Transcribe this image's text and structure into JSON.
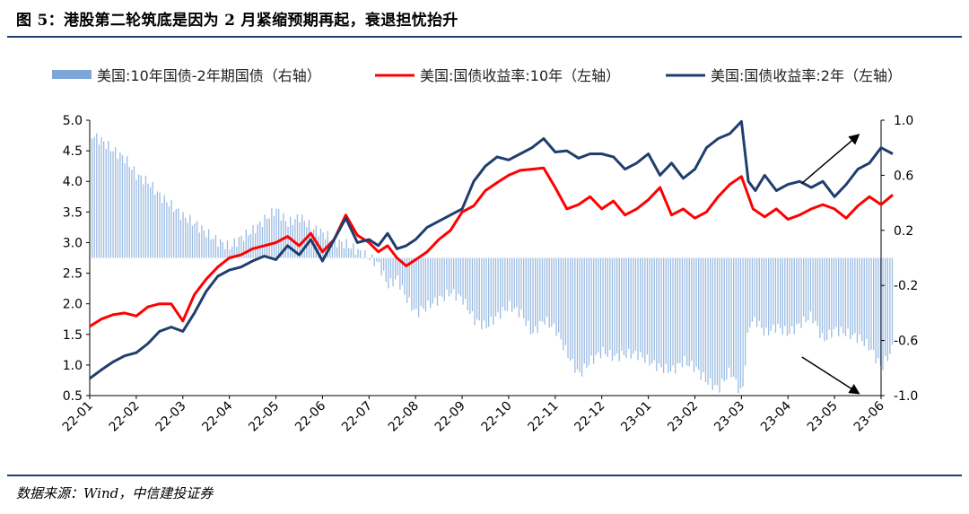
{
  "title": "图 5：港股第二轮筑底是因为 2 月紧缩预期再起，衰退担忧抬升",
  "source": "数据来源：Wind，中信建投证券",
  "chart_data": {
    "type": "line+bar",
    "legend": [
      {
        "name": "美国:10年国债-2年期国债（右轴）",
        "color": "#7ea6d8",
        "kind": "bar"
      },
      {
        "name": "美国:国债收益率:10年（左轴）",
        "color": "#ff0000",
        "kind": "line"
      },
      {
        "name": "美国:国债收益率:2年（左轴）",
        "color": "#1f3e6e",
        "kind": "line"
      }
    ],
    "legend_position": "top",
    "left_axis": {
      "min": 0.5,
      "max": 5.0,
      "ticks": [
        "0.5",
        "1.0",
        "1.5",
        "2.0",
        "2.5",
        "3.0",
        "3.5",
        "4.0",
        "4.5",
        "5.0"
      ]
    },
    "right_axis": {
      "min": -1.0,
      "max": 1.0,
      "ticks": [
        "-1.0",
        "-0.6",
        "-0.2",
        "0.2",
        "0.6",
        "1.0"
      ]
    },
    "x_ticks": [
      "22-01",
      "22-02",
      "22-03",
      "22-04",
      "22-05",
      "22-06",
      "22-07",
      "22-08",
      "22-09",
      "22-10",
      "22-11",
      "22-12",
      "23-01",
      "23-02",
      "23-03",
      "23-04",
      "23-05",
      "23-06"
    ],
    "series": [
      {
        "name": "美国:国债收益率:10年（左轴）",
        "axis": "left",
        "x": [
          0,
          0.25,
          0.5,
          0.75,
          1,
          1.25,
          1.5,
          1.75,
          2,
          2.25,
          2.5,
          2.75,
          3,
          3.25,
          3.5,
          3.75,
          4,
          4.25,
          4.5,
          4.75,
          5,
          5.25,
          5.5,
          5.75,
          6,
          6.2,
          6.4,
          6.6,
          6.8,
          7,
          7.25,
          7.5,
          7.75,
          8,
          8.25,
          8.5,
          8.75,
          9,
          9.25,
          9.5,
          9.75,
          10,
          10.25,
          10.5,
          10.75,
          11,
          11.25,
          11.5,
          11.75,
          12,
          12.25,
          12.5,
          12.75,
          13,
          13.25,
          13.5,
          13.75,
          14,
          14.25,
          14.5,
          14.75,
          15,
          15.25,
          15.5,
          15.75,
          16,
          16.25,
          16.5,
          16.75,
          17,
          17.25
        ],
        "values": [
          1.63,
          1.75,
          1.82,
          1.85,
          1.8,
          1.95,
          2.0,
          2.0,
          1.72,
          2.15,
          2.4,
          2.6,
          2.75,
          2.8,
          2.9,
          2.95,
          3.0,
          3.1,
          2.95,
          3.15,
          2.85,
          3.05,
          3.45,
          3.12,
          3.0,
          2.85,
          2.95,
          2.75,
          2.62,
          2.72,
          2.85,
          3.05,
          3.2,
          3.5,
          3.6,
          3.85,
          3.98,
          4.1,
          4.18,
          4.2,
          4.22,
          3.9,
          3.55,
          3.62,
          3.75,
          3.55,
          3.68,
          3.45,
          3.55,
          3.7,
          3.9,
          3.45,
          3.55,
          3.4,
          3.5,
          3.75,
          3.95,
          4.08,
          3.55,
          3.42,
          3.55,
          3.38,
          3.45,
          3.55,
          3.62,
          3.55,
          3.4,
          3.6,
          3.75,
          3.62,
          3.78
        ]
      },
      {
        "name": "美国:国债收益率:2年（左轴）",
        "axis": "left",
        "x": [
          0,
          0.25,
          0.5,
          0.75,
          1,
          1.25,
          1.5,
          1.75,
          2,
          2.25,
          2.5,
          2.75,
          3,
          3.25,
          3.5,
          3.75,
          4,
          4.25,
          4.5,
          4.75,
          5,
          5.25,
          5.5,
          5.75,
          6,
          6.2,
          6.4,
          6.6,
          6.8,
          7,
          7.25,
          7.5,
          7.75,
          8,
          8.25,
          8.5,
          8.75,
          9,
          9.25,
          9.5,
          9.75,
          10,
          10.25,
          10.5,
          10.75,
          11,
          11.25,
          11.5,
          11.75,
          12,
          12.25,
          12.5,
          12.75,
          13,
          13.25,
          13.5,
          13.75,
          14,
          14.15,
          14.3,
          14.5,
          14.75,
          15,
          15.25,
          15.5,
          15.75,
          16,
          16.25,
          16.5,
          16.75,
          17,
          17.25
        ],
        "values": [
          0.78,
          0.92,
          1.05,
          1.15,
          1.2,
          1.35,
          1.55,
          1.62,
          1.55,
          1.85,
          2.2,
          2.45,
          2.55,
          2.6,
          2.7,
          2.78,
          2.72,
          2.95,
          2.8,
          3.05,
          2.7,
          3.05,
          3.4,
          3.0,
          3.05,
          2.95,
          3.15,
          2.9,
          2.95,
          3.05,
          3.25,
          3.35,
          3.45,
          3.55,
          4.0,
          4.25,
          4.4,
          4.35,
          4.45,
          4.55,
          4.7,
          4.48,
          4.5,
          4.38,
          4.45,
          4.45,
          4.4,
          4.2,
          4.3,
          4.45,
          4.1,
          4.3,
          4.05,
          4.2,
          4.55,
          4.7,
          4.78,
          4.98,
          4.0,
          3.85,
          4.1,
          3.85,
          3.95,
          4.0,
          3.9,
          4.0,
          3.75,
          3.95,
          4.2,
          4.3,
          4.55,
          4.45
        ]
      },
      {
        "name": "美国:10年国债-2年期国债（右轴）",
        "axis": "right",
        "x": [
          0,
          0.25,
          0.5,
          0.75,
          1,
          1.25,
          1.5,
          1.75,
          2,
          2.25,
          2.5,
          2.75,
          3,
          3.25,
          3.5,
          3.75,
          4,
          4.25,
          4.5,
          4.75,
          5,
          5.25,
          5.5,
          5.75,
          6,
          6.2,
          6.4,
          6.6,
          6.8,
          7,
          7.25,
          7.5,
          7.75,
          8,
          8.25,
          8.5,
          8.75,
          9,
          9.25,
          9.5,
          9.75,
          10,
          10.25,
          10.5,
          10.75,
          11,
          11.25,
          11.5,
          11.75,
          12,
          12.25,
          12.5,
          12.75,
          13,
          13.25,
          13.5,
          13.75,
          14,
          14.15,
          14.3,
          14.5,
          14.75,
          15,
          15.25,
          15.5,
          15.75,
          16,
          16.25,
          16.5,
          16.75,
          17,
          17.25
        ],
        "values": [
          0.9,
          0.85,
          0.78,
          0.72,
          0.6,
          0.55,
          0.45,
          0.38,
          0.3,
          0.25,
          0.18,
          0.12,
          0.08,
          0.15,
          0.2,
          0.28,
          0.35,
          0.25,
          0.3,
          0.22,
          0.18,
          0.12,
          0.1,
          0.05,
          0.0,
          -0.05,
          -0.2,
          -0.15,
          -0.3,
          -0.4,
          -0.35,
          -0.3,
          -0.25,
          -0.3,
          -0.45,
          -0.5,
          -0.42,
          -0.35,
          -0.4,
          -0.55,
          -0.45,
          -0.52,
          -0.7,
          -0.85,
          -0.75,
          -0.68,
          -0.72,
          -0.7,
          -0.7,
          -0.75,
          -0.8,
          -0.82,
          -0.75,
          -0.8,
          -0.9,
          -0.95,
          -0.82,
          -1.0,
          -0.48,
          -0.45,
          -0.55,
          -0.5,
          -0.55,
          -0.48,
          -0.42,
          -0.6,
          -0.52,
          -0.55,
          -0.58,
          -0.65,
          -0.8,
          -0.65
        ]
      }
    ],
    "annotations": [
      {
        "type": "arrow",
        "from_x": 15.3,
        "from_y": 3.97,
        "to_x": 16.5,
        "to_y": 4.75,
        "axis": "left"
      },
      {
        "type": "arrow",
        "from_x": 15.3,
        "from_y": -0.72,
        "to_x": 16.5,
        "to_y": -0.98,
        "axis": "right"
      }
    ]
  }
}
